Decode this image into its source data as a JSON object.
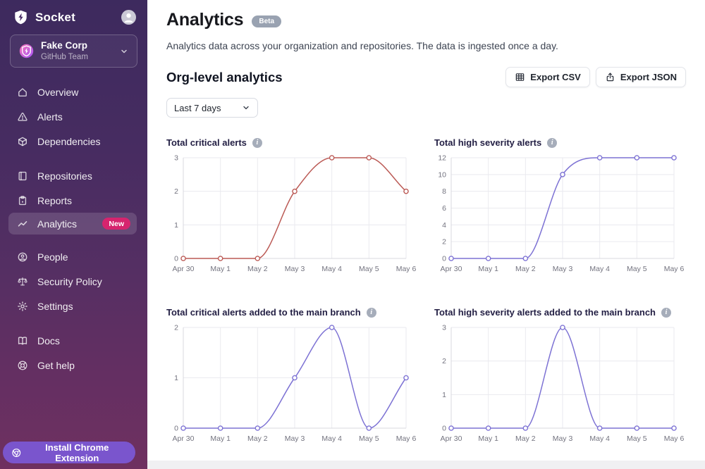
{
  "sidebar": {
    "brand": "Socket",
    "org": {
      "name": "Fake Corp",
      "team": "GitHub Team"
    },
    "items": [
      {
        "label": "Overview"
      },
      {
        "label": "Alerts"
      },
      {
        "label": "Dependencies"
      },
      {
        "label": "Repositories"
      },
      {
        "label": "Reports"
      },
      {
        "label": "Analytics",
        "badge": "New",
        "active": true
      },
      {
        "label": "People"
      },
      {
        "label": "Security Policy"
      },
      {
        "label": "Settings"
      },
      {
        "label": "Docs"
      },
      {
        "label": "Get help"
      }
    ],
    "install_button": "Install Chrome Extension"
  },
  "header": {
    "title": "Analytics",
    "badge": "Beta",
    "description": "Analytics data across your organization and repositories. The data is ingested once a day."
  },
  "section": {
    "title": "Org-level analytics",
    "export_csv": "Export CSV",
    "export_json": "Export JSON",
    "range_selector": "Last 7 days"
  },
  "colors": {
    "new_badge": "#d6246e",
    "beta_badge": "#99a2b1",
    "install_btn": "#7a55cd",
    "critical_line": "#bb5a55",
    "high_line": "#7d72d4"
  },
  "chart_data": [
    {
      "type": "line",
      "title": "Total critical alerts",
      "x": [
        "Apr 30",
        "May 1",
        "May 2",
        "May 3",
        "May 4",
        "May 5",
        "May 6"
      ],
      "values": [
        0,
        0,
        0,
        2,
        3,
        3,
        2
      ],
      "y_ticks": [
        0,
        1,
        2,
        3
      ],
      "ylim": [
        0,
        3
      ],
      "color": "#bb5a55",
      "grid": true,
      "legend": "none"
    },
    {
      "type": "line",
      "title": "Total high severity alerts",
      "x": [
        "Apr 30",
        "May 1",
        "May 2",
        "May 3",
        "May 4",
        "May 5",
        "May 6"
      ],
      "values": [
        0,
        0,
        0,
        10,
        12,
        12,
        12
      ],
      "y_ticks": [
        0,
        2,
        4,
        6,
        8,
        10,
        12
      ],
      "ylim": [
        0,
        12
      ],
      "color": "#7d72d4",
      "grid": true,
      "legend": "none"
    },
    {
      "type": "line",
      "title": "Total critical alerts added to the main branch",
      "x": [
        "Apr 30",
        "May 1",
        "May 2",
        "May 3",
        "May 4",
        "May 5",
        "May 6"
      ],
      "values": [
        0,
        0,
        0,
        1,
        2,
        0,
        1
      ],
      "y_ticks": [
        0,
        1,
        2
      ],
      "ylim": [
        0,
        2
      ],
      "color": "#7d72d4",
      "grid": true,
      "legend": "none"
    },
    {
      "type": "line",
      "title": "Total high severity alerts added to the main branch",
      "x": [
        "Apr 30",
        "May 1",
        "May 2",
        "May 3",
        "May 4",
        "May 5",
        "May 6"
      ],
      "values": [
        0,
        0,
        0,
        3,
        0,
        0,
        0
      ],
      "y_ticks": [
        0,
        1,
        2,
        3
      ],
      "ylim": [
        0,
        3
      ],
      "color": "#7d72d4",
      "grid": true,
      "legend": "none"
    }
  ]
}
